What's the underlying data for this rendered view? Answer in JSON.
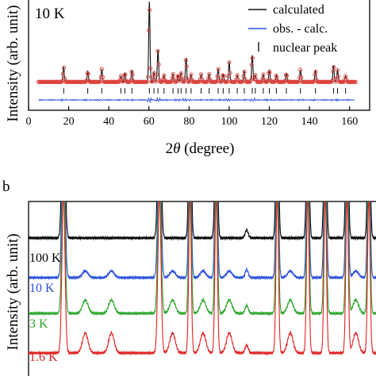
{
  "colors": {
    "observed": "#e0413d",
    "calculated": "#111111",
    "difference": "#2a56e6",
    "ticks": "#111111",
    "k100": "#000000",
    "k10": "#2a4fd8",
    "k3": "#2aa52a",
    "k16": "#e02020"
  },
  "panel_a": {
    "temperature_label": "10 K",
    "ylabel": "Intensity (arb. unit)",
    "xlabel_prefix": "2",
    "xlabel_theta": "θ",
    "xlabel_suffix": " (degree)",
    "legend": {
      "calculated": "calculated",
      "difference": "obs. - calc.",
      "nuclear": "nuclear peak"
    }
  },
  "panel_b": {
    "letter": "b",
    "ylabel": "Intensity (arb. unit)",
    "labels": [
      "100 K",
      "10 K",
      "3 K",
      "1.6 K"
    ]
  },
  "chart_data": [
    {
      "type": "line",
      "panel": "a",
      "xlabel": "2θ (degree)",
      "ylabel": "Intensity (arb. unit)",
      "xlim": [
        0,
        170
      ],
      "xticks": [
        0,
        20,
        40,
        60,
        80,
        100,
        120,
        140,
        160
      ],
      "background": 8,
      "peaks": [
        {
          "x": 17.5,
          "h": 55
        },
        {
          "x": 29.5,
          "h": 40
        },
        {
          "x": 36.5,
          "h": 48
        },
        {
          "x": 46.0,
          "h": 22
        },
        {
          "x": 48.0,
          "h": 34
        },
        {
          "x": 51.5,
          "h": 42
        },
        {
          "x": 60.2,
          "h": 300
        },
        {
          "x": 62.5,
          "h": 35
        },
        {
          "x": 64.5,
          "h": 120
        },
        {
          "x": 67.5,
          "h": 25
        },
        {
          "x": 72.0,
          "h": 30
        },
        {
          "x": 74.5,
          "h": 26
        },
        {
          "x": 76.0,
          "h": 34
        },
        {
          "x": 78.5,
          "h": 90
        },
        {
          "x": 81.0,
          "h": 28
        },
        {
          "x": 86.0,
          "h": 28
        },
        {
          "x": 90.0,
          "h": 30
        },
        {
          "x": 94.5,
          "h": 48
        },
        {
          "x": 97.0,
          "h": 30
        },
        {
          "x": 100.0,
          "h": 74
        },
        {
          "x": 104.0,
          "h": 25
        },
        {
          "x": 107.5,
          "h": 40
        },
        {
          "x": 111.5,
          "h": 100
        },
        {
          "x": 113.0,
          "h": 26
        },
        {
          "x": 117.0,
          "h": 28
        },
        {
          "x": 120.0,
          "h": 45
        },
        {
          "x": 123.5,
          "h": 26
        },
        {
          "x": 128.5,
          "h": 32
        },
        {
          "x": 135.5,
          "h": 45
        },
        {
          "x": 143.0,
          "h": 42
        },
        {
          "x": 152.0,
          "h": 62
        },
        {
          "x": 154.0,
          "h": 45
        },
        {
          "x": 158.0,
          "h": 22
        }
      ],
      "series": [
        {
          "name": "calculated"
        },
        {
          "name": "obs. - calc."
        },
        {
          "name": "nuclear peak",
          "kind": "tick_marks"
        }
      ]
    },
    {
      "type": "line",
      "panel": "b",
      "ylabel": "Intensity (arb. unit)",
      "x_range": [
        10,
        50
      ],
      "peaks": [
        {
          "x": 14.0,
          "h": 200,
          "w": 0.25
        },
        {
          "x": 25.0,
          "h": 200,
          "w": 0.25
        },
        {
          "x": 28.5,
          "h": 200,
          "w": 0.2
        },
        {
          "x": 31.5,
          "h": 200,
          "w": 0.2
        },
        {
          "x": 35.0,
          "h": 10,
          "w": 0.25
        },
        {
          "x": 38.5,
          "h": 200,
          "w": 0.2
        },
        {
          "x": 42.0,
          "h": 200,
          "w": 0.2
        },
        {
          "x": 44.0,
          "h": 200,
          "w": 0.2
        },
        {
          "x": 46.5,
          "h": 200,
          "w": 0.2
        },
        {
          "x": 49.0,
          "h": 200,
          "w": 0.2
        }
      ],
      "magnetic_peaks": [
        {
          "x": 16.5
        },
        {
          "x": 19.5
        },
        {
          "x": 26.5
        },
        {
          "x": 30.0
        },
        {
          "x": 33.0
        },
        {
          "x": 40.0
        },
        {
          "x": 47.5
        }
      ],
      "series": [
        {
          "name": "100 K",
          "offset": 90,
          "mag": 0.0
        },
        {
          "name": "10 K",
          "offset": 60,
          "mag": 0.6
        },
        {
          "name": "3 K",
          "offset": 30,
          "mag": 1.2
        },
        {
          "name": "1.6 K",
          "offset": 0,
          "mag": 1.8
        }
      ]
    }
  ]
}
